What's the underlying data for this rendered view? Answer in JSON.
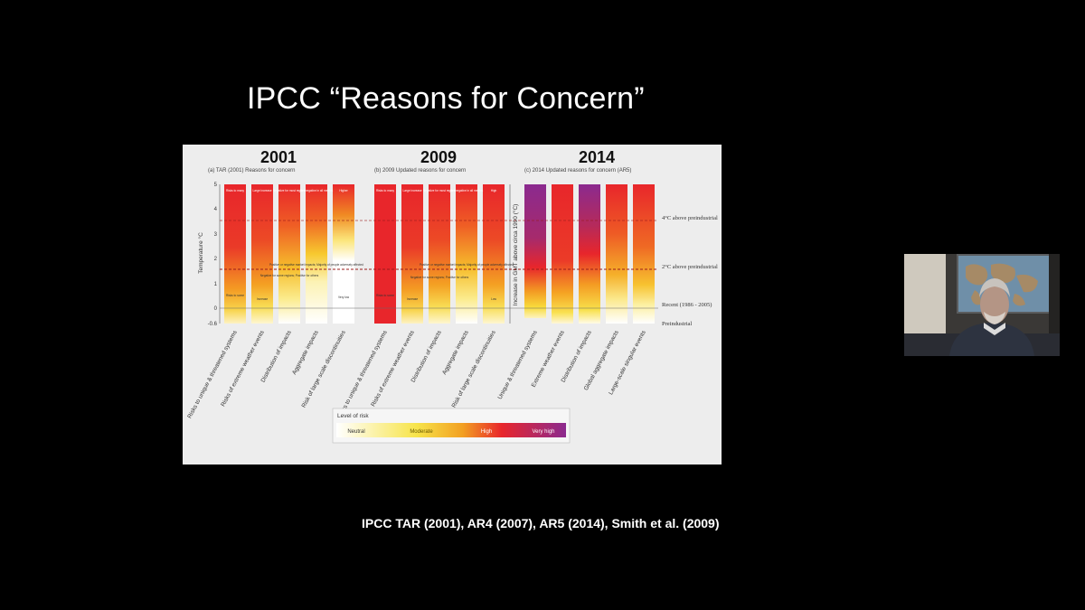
{
  "slide": {
    "title": "IPCC “Reasons for Concern”",
    "citation": "IPCC TAR (2001), AR4 (2007), AR5 (2014), Smith et al. (2009)"
  },
  "figure": {
    "panels": [
      {
        "year": "2001",
        "subtitle": "(a) TAR (2001) Reasons for concern",
        "top_labels": [
          "Risks to many",
          "Large increase",
          "Negative for most regions",
          "Net negative in all metrics",
          "Higher"
        ],
        "mid_labels": [
          "",
          "",
          "Negative for some regions; Positive for others",
          "Positive or negative market impacts; Majority of people adversely affected",
          ""
        ],
        "bottom_labels": [
          "Risks to some",
          "Increase",
          "",
          "",
          "Very low"
        ],
        "categories": [
          "Risks to unique & threatened systems",
          "Risks of extreme weather events",
          "Distribution of impacts",
          "Aggregate impacts",
          "Risk of large scale discontinuities"
        ]
      },
      {
        "year": "2009",
        "subtitle": "(b) 2009 Updated reasons for concern",
        "top_labels": [
          "Risks to many",
          "Large increase",
          "Negative for most regions",
          "Net negative in all metrics",
          "High"
        ],
        "mid_labels": [
          "",
          "",
          "Negative for some regions; Positive for others",
          "Positive or negative market impacts; Majority of people adversely affected",
          ""
        ],
        "bottom_labels": [
          "Risks to some",
          "Increase",
          "",
          "",
          "Low"
        ],
        "categories": [
          "Risks to unique & threatened systems",
          "Risks of extreme weather events",
          "Distribution of impacts",
          "Aggregate impacts",
          "Risk of large scale discontinuities"
        ]
      },
      {
        "year": "2014",
        "subtitle": "(c) 2014 Updated reasons for concern (AR5)",
        "categories": [
          "Unique & threatened systems",
          "Extreme weather events",
          "Distribution of impacts",
          "Global aggregate impacts",
          "Large-scale singular events"
        ]
      }
    ],
    "y_axis_label": "Temperature °C",
    "y_ticks": [
      "5",
      "4",
      "3",
      "2",
      "1",
      "0",
      "-0.6"
    ],
    "y_axis2_label": "Increase in GMT above circa 1990 (°C)",
    "right_labels": [
      "4°C above preindustrial",
      "2°C above preindustrial",
      "Recent (1986 - 2005)",
      "Preindustrial"
    ],
    "legend": {
      "title": "Level of risk",
      "levels": [
        "Neutral",
        "Moderate",
        "High",
        "Very high"
      ],
      "colors": [
        "#ffffff",
        "#f5e021",
        "#e8262b",
        "#8b2a8f"
      ]
    }
  }
}
